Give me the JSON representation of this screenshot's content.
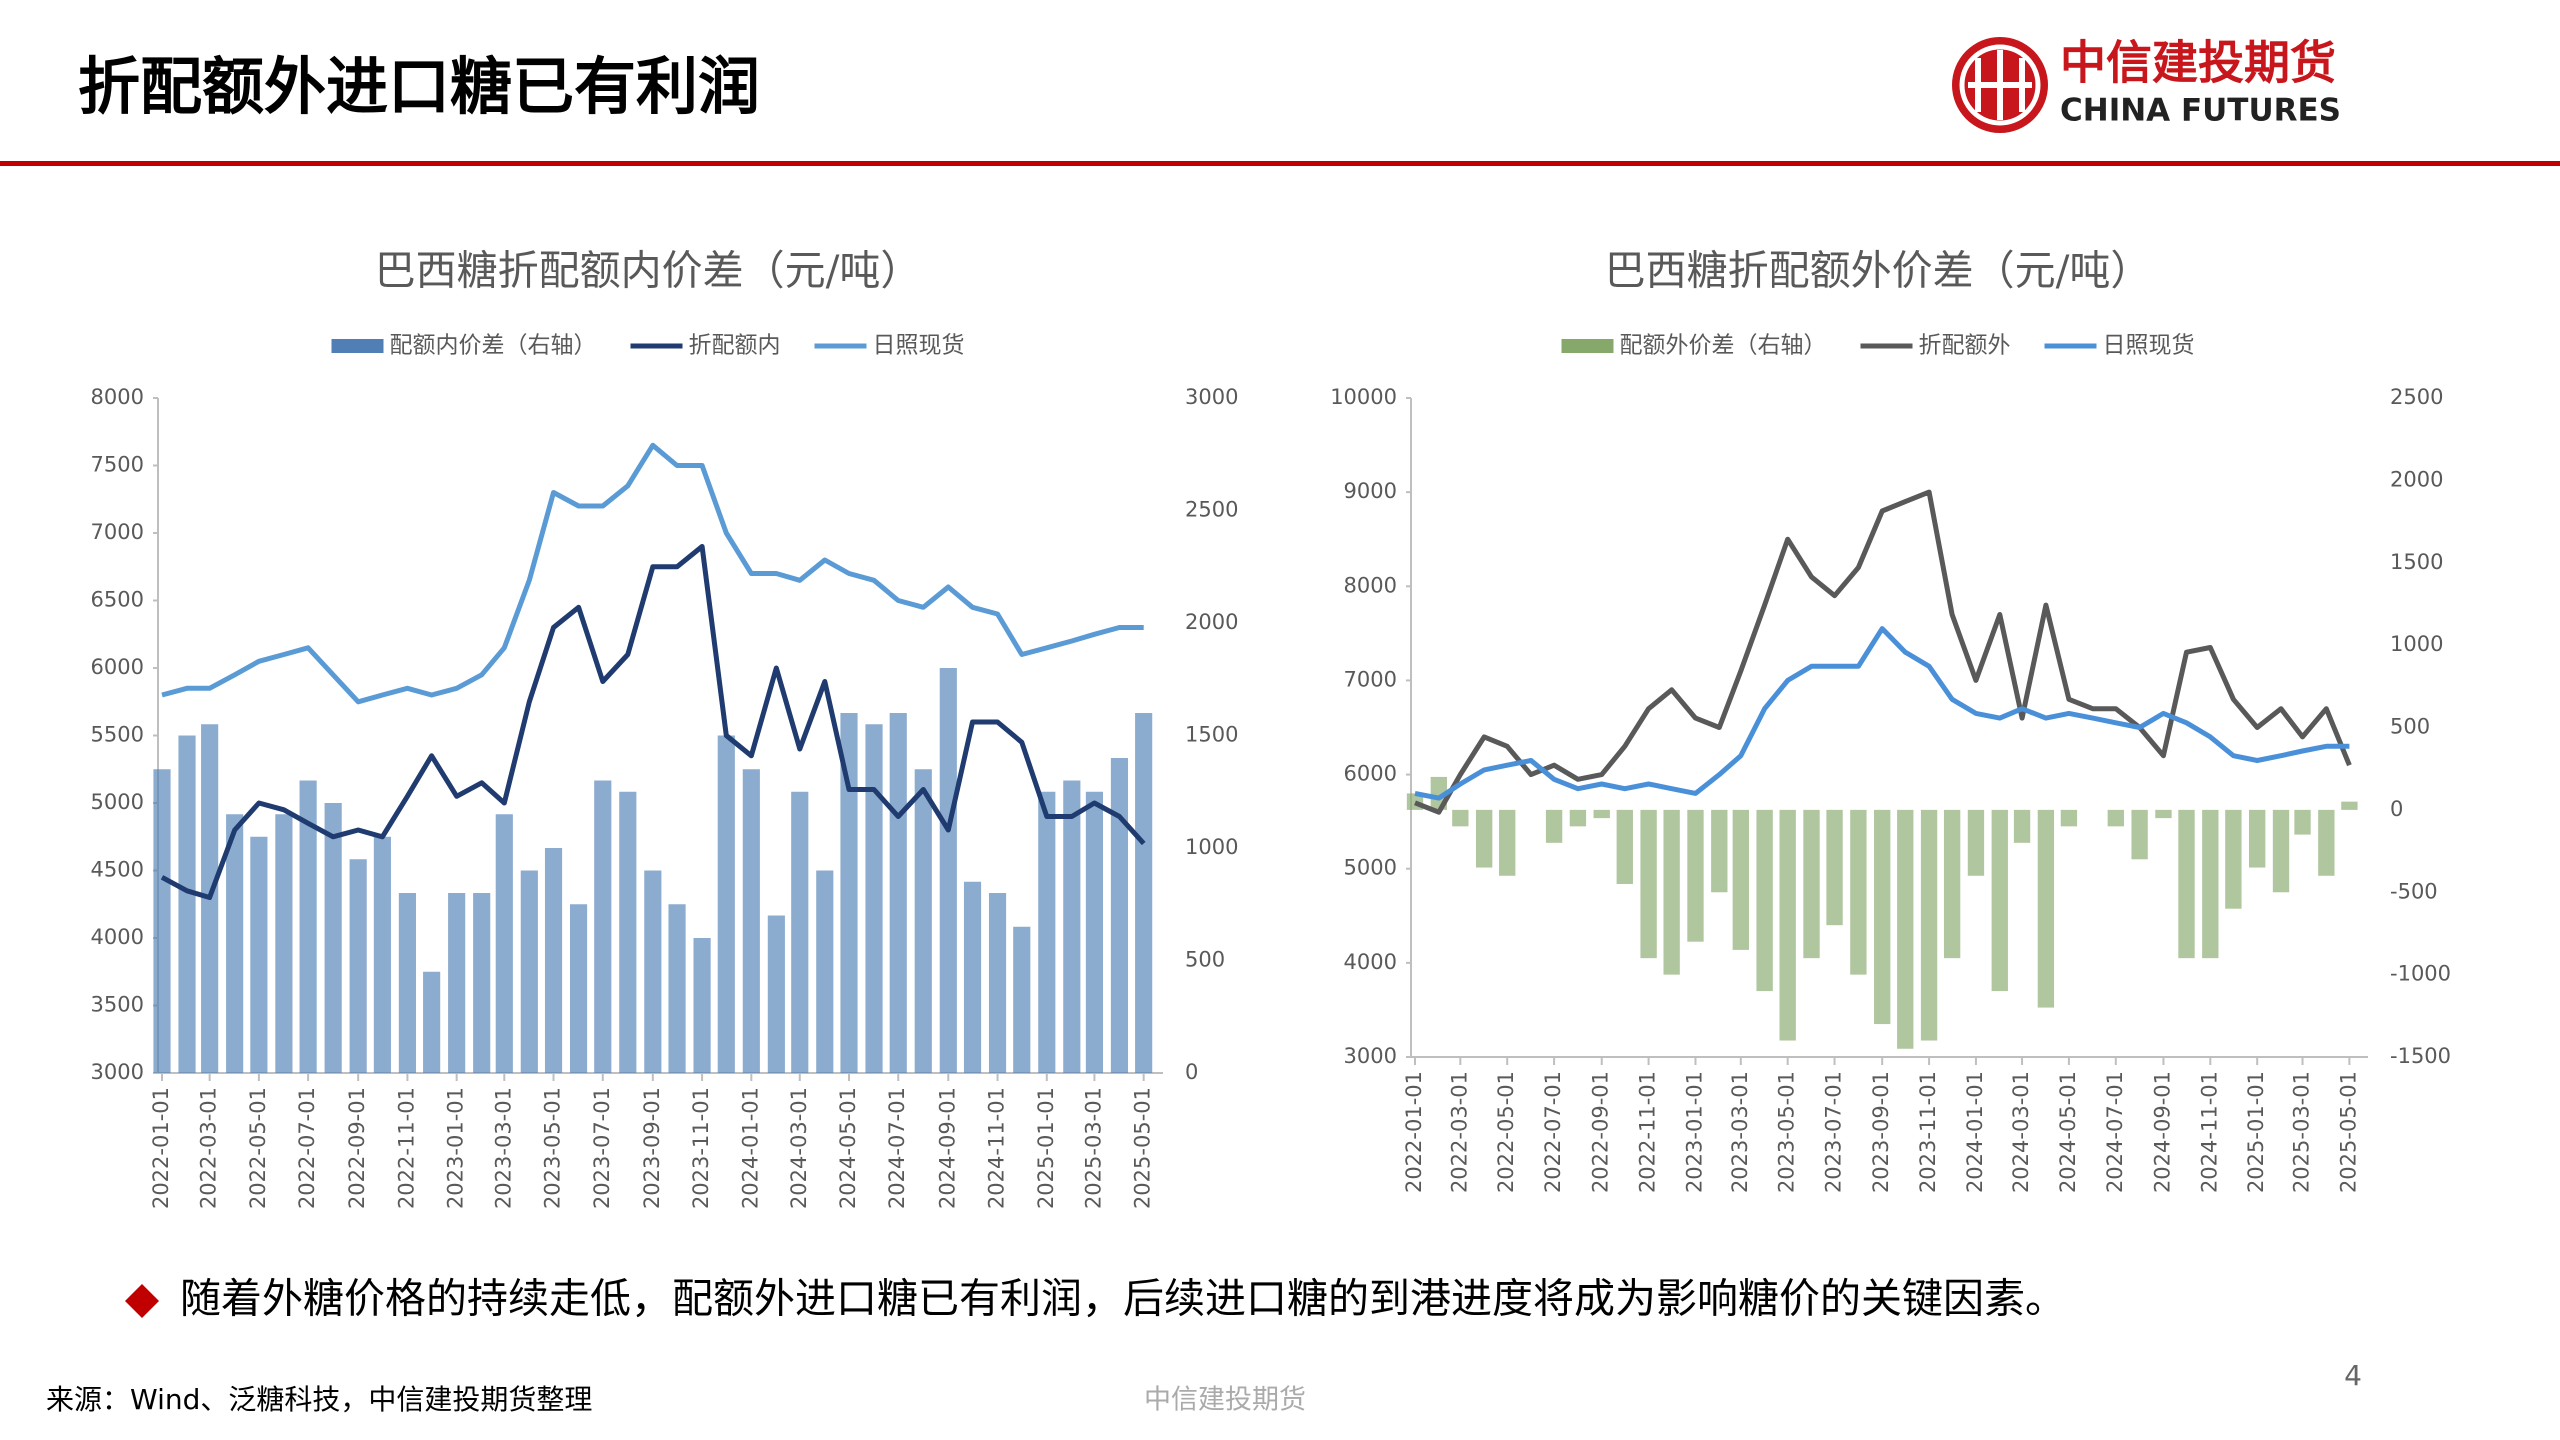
{
  "page": {
    "title": "折配额外进口糖已有利润",
    "logo_cn": "中信建投期货",
    "logo_en": "CHINA FUTURES",
    "bullet": "随着外糖价格的持续走低，配额外进口糖已有利润，后续进口糖的到港进度将成为影响糖价的关键因素。",
    "source": "来源：Wind、泛糖科技，中信建投期货整理",
    "footer": "中信建投期货",
    "page_number": "4"
  },
  "chart_data": [
    {
      "type": "combo",
      "title": "巴西糖折配额内价差（元/吨）",
      "x": [
        "2022-01-01",
        "2022-02-01",
        "2022-03-01",
        "2022-04-01",
        "2022-05-01",
        "2022-06-01",
        "2022-07-01",
        "2022-08-01",
        "2022-09-01",
        "2022-10-01",
        "2022-11-01",
        "2022-12-01",
        "2023-01-01",
        "2023-02-01",
        "2023-03-01",
        "2023-04-01",
        "2023-05-01",
        "2023-06-01",
        "2023-07-01",
        "2023-08-01",
        "2023-09-01",
        "2023-10-01",
        "2023-11-01",
        "2023-12-01",
        "2024-01-01",
        "2024-02-01",
        "2024-03-01",
        "2024-04-01",
        "2024-05-01",
        "2024-06-01",
        "2024-07-01",
        "2024-08-01",
        "2024-09-01",
        "2024-10-01",
        "2024-11-01",
        "2024-12-01",
        "2025-01-01",
        "2025-02-01",
        "2025-03-01",
        "2025-04-01",
        "2025-05-01"
      ],
      "xlim": [
        "2022-01-01",
        "2025-05-20"
      ],
      "xticks": [
        "2022-01-01",
        "2022-03-01",
        "2022-05-01",
        "2022-07-01",
        "2022-09-01",
        "2022-11-01",
        "2023-01-01",
        "2023-03-01",
        "2023-05-01",
        "2023-07-01",
        "2023-09-01",
        "2023-11-01",
        "2024-01-01",
        "2024-03-01",
        "2024-05-01",
        "2024-07-01",
        "2024-09-01",
        "2024-11-01",
        "2025-01-01",
        "2025-03-01",
        "2025-05-01"
      ],
      "ylim": [
        3000,
        8000
      ],
      "yticks": [
        3000,
        3500,
        4000,
        4500,
        5000,
        5500,
        6000,
        6500,
        7000,
        7500,
        8000
      ],
      "y2lim": [
        0,
        3000
      ],
      "y2ticks": [
        0,
        500,
        1000,
        1500,
        2000,
        2500,
        3000
      ],
      "series": [
        {
          "name": "配额内价差（右轴）",
          "type": "bar",
          "axis": "y2",
          "color": "#4f7fb5",
          "values": [
            1350,
            1500,
            1550,
            1150,
            1050,
            1150,
            1300,
            1200,
            950,
            1050,
            800,
            450,
            800,
            800,
            1150,
            900,
            1000,
            750,
            1300,
            1250,
            900,
            750,
            600,
            1500,
            1350,
            700,
            1250,
            900,
            1600,
            1550,
            1600,
            1350,
            1800,
            850,
            800,
            650,
            1250,
            1300,
            1250,
            1400,
            1600
          ]
        },
        {
          "name": "折配额内",
          "type": "line",
          "color": "#1f3b70",
          "values": [
            4450,
            4350,
            4300,
            4800,
            5000,
            4950,
            4850,
            4750,
            4800,
            4750,
            5050,
            5350,
            5050,
            5150,
            5000,
            5750,
            6300,
            6450,
            5900,
            6100,
            6750,
            6750,
            6900,
            5500,
            5350,
            6000,
            5400,
            5900,
            5100,
            5100,
            4900,
            5100,
            4800,
            5600,
            5600,
            5450,
            4900,
            4900,
            5000,
            4900,
            4700
          ]
        },
        {
          "name": "日照现货",
          "type": "line",
          "color": "#5b9bd5",
          "values": [
            5800,
            5850,
            5850,
            5950,
            6050,
            6100,
            6150,
            5950,
            5750,
            5800,
            5850,
            5800,
            5850,
            5950,
            6150,
            6650,
            7300,
            7200,
            7200,
            7350,
            7650,
            7500,
            7500,
            7000,
            6700,
            6700,
            6650,
            6800,
            6700,
            6650,
            6500,
            6450,
            6600,
            6450,
            6400,
            6100,
            6150,
            6200,
            6250,
            6300,
            6300
          ]
        }
      ]
    },
    {
      "type": "combo",
      "title": "巴西糖折配额外价差（元/吨）",
      "x": [
        "2022-01-01",
        "2022-02-01",
        "2022-03-01",
        "2022-04-01",
        "2022-05-01",
        "2022-06-01",
        "2022-07-01",
        "2022-08-01",
        "2022-09-01",
        "2022-10-01",
        "2022-11-01",
        "2022-12-01",
        "2023-01-01",
        "2023-02-01",
        "2023-03-01",
        "2023-04-01",
        "2023-05-01",
        "2023-06-01",
        "2023-07-01",
        "2023-08-01",
        "2023-09-01",
        "2023-10-01",
        "2023-11-01",
        "2023-12-01",
        "2024-01-01",
        "2024-02-01",
        "2024-03-01",
        "2024-04-01",
        "2024-05-01",
        "2024-06-01",
        "2024-07-01",
        "2024-08-01",
        "2024-09-01",
        "2024-10-01",
        "2024-11-01",
        "2024-12-01",
        "2025-01-01",
        "2025-02-01",
        "2025-03-01",
        "2025-04-01",
        "2025-05-01"
      ],
      "xlim": [
        "2022-01-01",
        "2025-05-20"
      ],
      "xticks": [
        "2022-01-01",
        "2022-03-01",
        "2022-05-01",
        "2022-07-01",
        "2022-09-01",
        "2022-11-01",
        "2023-01-01",
        "2023-03-01",
        "2023-05-01",
        "2023-07-01",
        "2023-09-01",
        "2023-11-01",
        "2024-01-01",
        "2024-03-01",
        "2024-05-01",
        "2024-07-01",
        "2024-09-01",
        "2024-11-01",
        "2025-01-01",
        "2025-03-01",
        "2025-05-01"
      ],
      "ylim": [
        3000,
        10000
      ],
      "yticks": [
        3000,
        4000,
        5000,
        6000,
        7000,
        8000,
        9000,
        10000
      ],
      "y2lim": [
        -1500,
        2500
      ],
      "y2ticks": [
        -1500,
        -1000,
        -500,
        0,
        500,
        1000,
        1500,
        2000,
        2500
      ],
      "series": [
        {
          "name": "配额外价差（右轴）",
          "type": "bar",
          "axis": "y2",
          "color": "#86a86a",
          "values": [
            100,
            200,
            -100,
            -350,
            -400,
            0,
            -200,
            -100,
            -50,
            -450,
            -900,
            -1000,
            -800,
            -500,
            -850,
            -1100,
            -1400,
            -900,
            -700,
            -1000,
            -1300,
            -1450,
            -1400,
            -900,
            -400,
            -1100,
            -200,
            -1200,
            -100,
            0,
            -100,
            -300,
            -50,
            -900,
            -900,
            -600,
            -350,
            -500,
            -150,
            -400,
            50
          ]
        },
        {
          "name": "折配额外",
          "type": "line",
          "color": "#595959",
          "values": [
            5700,
            5600,
            6000,
            6400,
            6300,
            6000,
            6100,
            5950,
            6000,
            6300,
            6700,
            6900,
            6600,
            6500,
            7100,
            7800,
            8500,
            8100,
            7900,
            8200,
            8800,
            8900,
            9000,
            7700,
            7000,
            7700,
            6600,
            7800,
            6800,
            6700,
            6700,
            6500,
            6200,
            7300,
            7350,
            6800,
            6500,
            6700,
            6400,
            6700,
            6100
          ]
        },
        {
          "name": "日照现货",
          "type": "line",
          "color": "#4a90d9",
          "values": [
            5800,
            5750,
            5900,
            6050,
            6100,
            6150,
            5950,
            5850,
            5900,
            5850,
            5900,
            5850,
            5800,
            6000,
            6200,
            6700,
            7000,
            7150,
            7150,
            7150,
            7550,
            7300,
            7150,
            6800,
            6650,
            6600,
            6700,
            6600,
            6650,
            6600,
            6550,
            6500,
            6650,
            6550,
            6400,
            6200,
            6150,
            6200,
            6250,
            6300,
            6300
          ]
        }
      ]
    }
  ]
}
